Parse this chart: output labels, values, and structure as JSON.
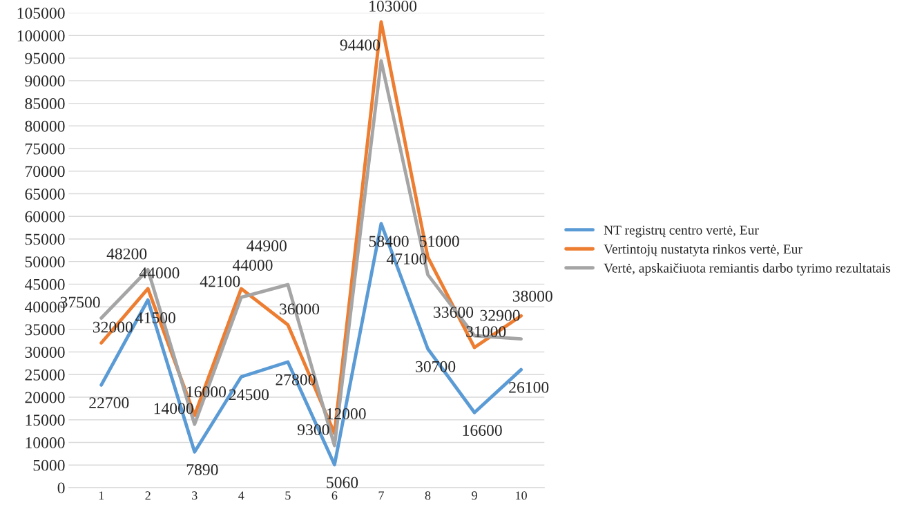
{
  "chart_data": {
    "type": "line",
    "categories": [
      "1",
      "2",
      "3",
      "4",
      "5",
      "6",
      "7",
      "8",
      "9",
      "10"
    ],
    "series": [
      {
        "name": "NT registrų centro vertė, Eur",
        "color": "#5b9bd5",
        "values": [
          22700,
          41500,
          7890,
          24500,
          27800,
          5060,
          58400,
          30700,
          16600,
          26100
        ]
      },
      {
        "name": "Vertintojų nustatyta rinkos vertė, Eur",
        "color": "#ed7d31",
        "values": [
          32000,
          44000,
          16000,
          44000,
          36000,
          12000,
          103000,
          51000,
          31000,
          38000
        ]
      },
      {
        "name": "Vertė, apskaičiuota remiantis darbo tyrimo rezultatais",
        "color": "#a5a5a5",
        "values": [
          37500,
          48200,
          14000,
          42100,
          44900,
          9300,
          94400,
          47100,
          33600,
          32900
        ]
      }
    ],
    "ylim": [
      0,
      105000
    ],
    "yticks": [
      0,
      5000,
      10000,
      15000,
      20000,
      25000,
      30000,
      35000,
      40000,
      45000,
      50000,
      55000,
      60000,
      65000,
      70000,
      75000,
      80000,
      85000,
      90000,
      95000,
      100000,
      105000
    ],
    "grid": "y",
    "legend": "right",
    "marker": "none",
    "line_style": "solid",
    "data_labels": true
  }
}
